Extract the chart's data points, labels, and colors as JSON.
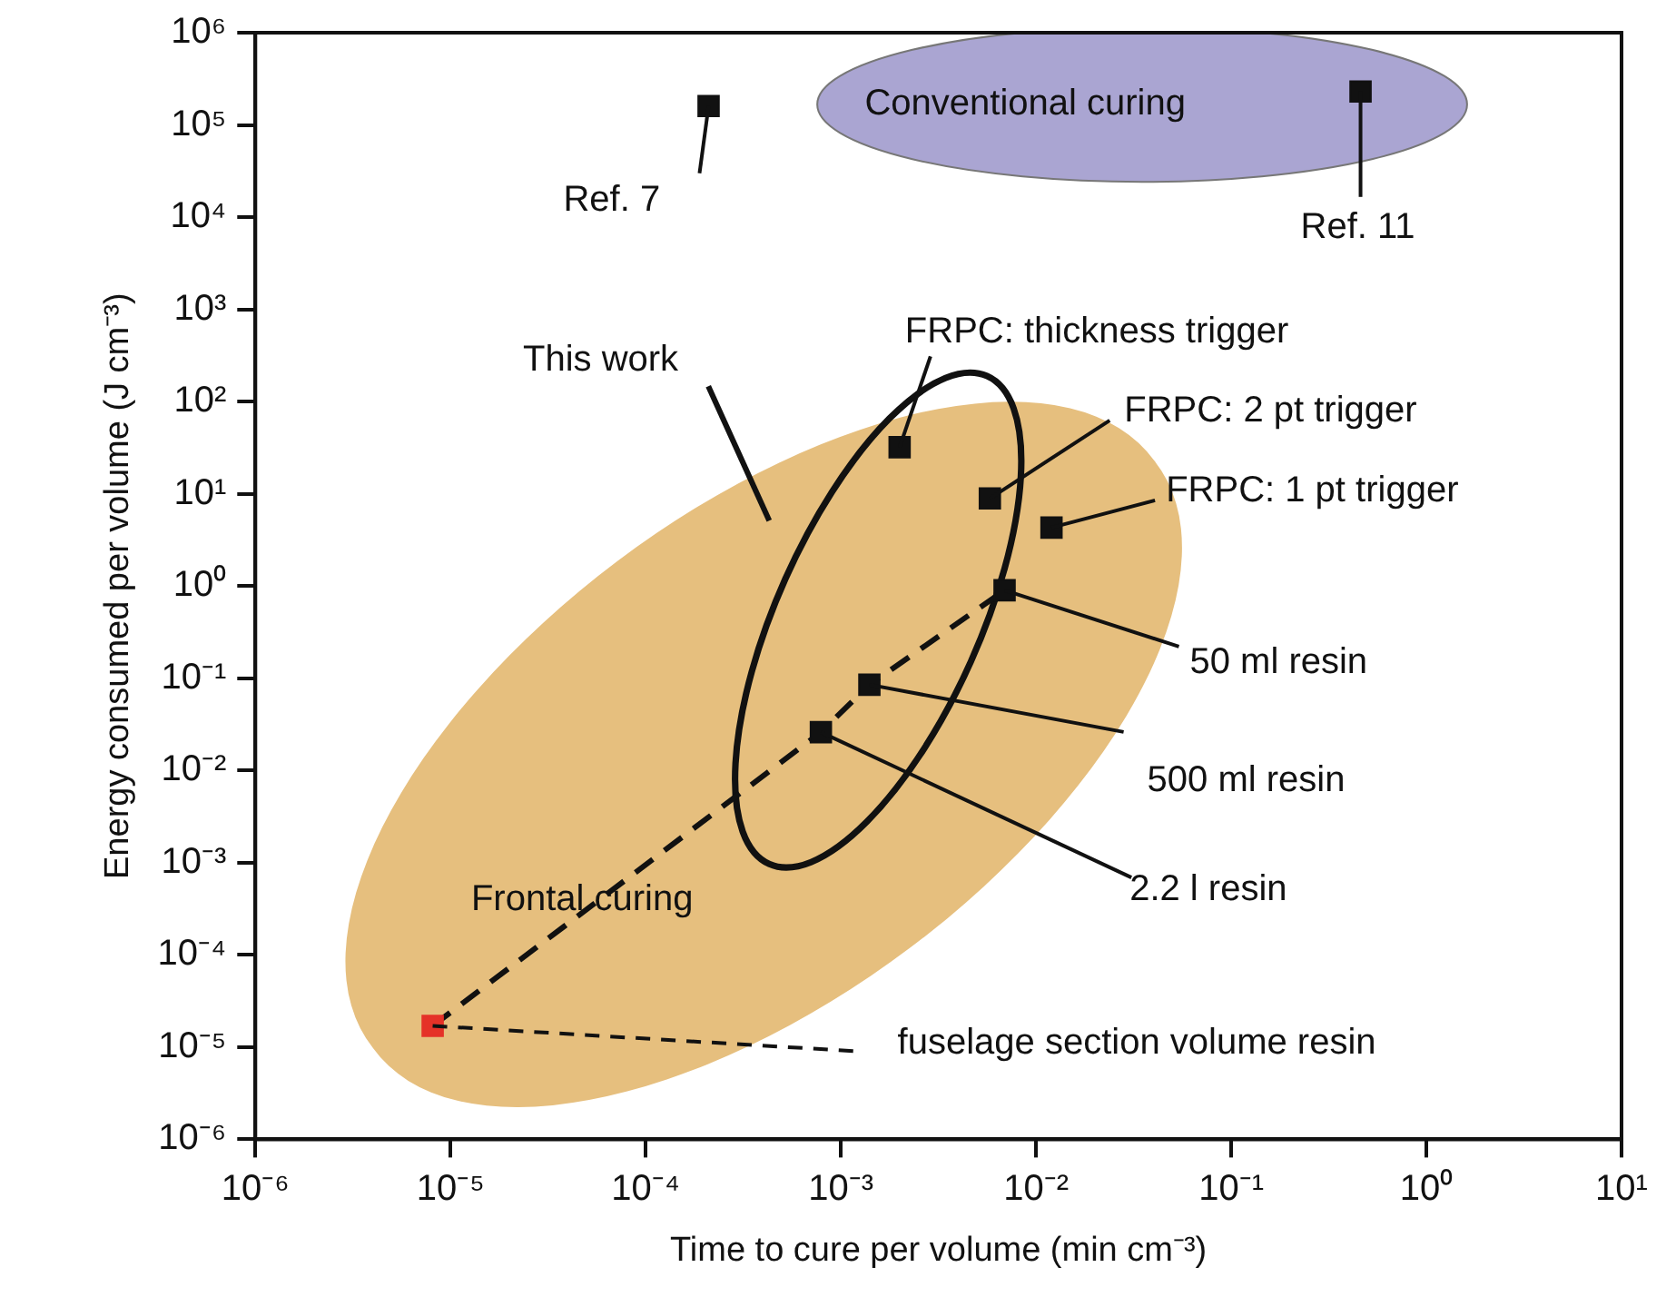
{
  "chart_data": {
    "type": "scatter",
    "xlabel": "Time to cure per volume (min cm⁻³)",
    "ylabel": "Energy consumed per volume (J cm⁻³)",
    "log": "xy",
    "grid": false,
    "legend": false,
    "xlim": [
      1e-06,
      10
    ],
    "ylim": [
      1e-06,
      1000000.0
    ],
    "xticks": [
      {
        "value": 1e-06,
        "label": "10⁻⁶"
      },
      {
        "value": 1e-05,
        "label": "10⁻⁵"
      },
      {
        "value": 0.0001,
        "label": "10⁻⁴"
      },
      {
        "value": 0.001,
        "label": "10⁻³"
      },
      {
        "value": 0.01,
        "label": "10⁻²"
      },
      {
        "value": 0.1,
        "label": "10⁻¹"
      },
      {
        "value": 1,
        "label": "10⁰"
      },
      {
        "value": 10,
        "label": "10¹"
      }
    ],
    "yticks": [
      {
        "value": 1e-06,
        "label": "10⁻⁶"
      },
      {
        "value": 1e-05,
        "label": "10⁻⁵"
      },
      {
        "value": 0.0001,
        "label": "10⁻⁴"
      },
      {
        "value": 0.001,
        "label": "10⁻³"
      },
      {
        "value": 0.01,
        "label": "10⁻²"
      },
      {
        "value": 0.1,
        "label": "10⁻¹"
      },
      {
        "value": 1,
        "label": "10⁰"
      },
      {
        "value": 10,
        "label": "10¹"
      },
      {
        "value": 100,
        "label": "10²"
      },
      {
        "value": 1000,
        "label": "10³"
      },
      {
        "value": 10000.0,
        "label": "10⁴"
      },
      {
        "value": 100000.0,
        "label": "10⁵"
      },
      {
        "value": 1000000.0,
        "label": "10⁶"
      }
    ],
    "series": [
      {
        "type": "scatter",
        "marker": "square",
        "color": "#111111",
        "x": [
          0.00021,
          0.46,
          0.002,
          0.0058,
          0.012,
          0.0069,
          0.0014,
          0.00079
        ],
        "values": [
          160000.0,
          230000.0,
          32,
          8.9,
          4.3,
          0.9,
          0.085,
          0.026
        ]
      },
      {
        "type": "scatter",
        "marker": "square",
        "color": "#e53228",
        "x": [
          8.1e-06
        ],
        "values": [
          1.7e-05
        ]
      },
      {
        "type": "line",
        "marker": "none",
        "line_style": "dashed",
        "color": "#111111",
        "x": [
          8.1e-06,
          0.00079,
          0.0014,
          0.0069
        ],
        "values": [
          1.7e-05,
          0.026,
          0.085,
          0.9
        ]
      }
    ],
    "annotations": [
      "Conventional curing",
      "This work",
      "Frontal curing",
      {
        "text": "Ref. 7",
        "x": 0.00021,
        "y": 160000.0
      },
      {
        "text": "Ref. 11",
        "x": 0.46,
        "y": 230000.0
      },
      {
        "text": "FRPC: thickness trigger",
        "x": 0.002,
        "y": 32
      },
      {
        "text": "FRPC: 2 pt trigger",
        "x": 0.0058,
        "y": 8.9
      },
      {
        "text": "FRPC: 1 pt trigger",
        "x": 0.012,
        "y": 4.3
      },
      {
        "text": "50 ml resin",
        "x": 0.0069,
        "y": 0.9
      },
      {
        "text": "500 ml resin",
        "x": 0.0014,
        "y": 0.085
      },
      {
        "text": "2.2 l resin",
        "x": 0.00079,
        "y": 0.026
      },
      {
        "text": "fuselage section volume resin",
        "x": 8.1e-06,
        "y": 1.7e-05
      }
    ]
  }
}
